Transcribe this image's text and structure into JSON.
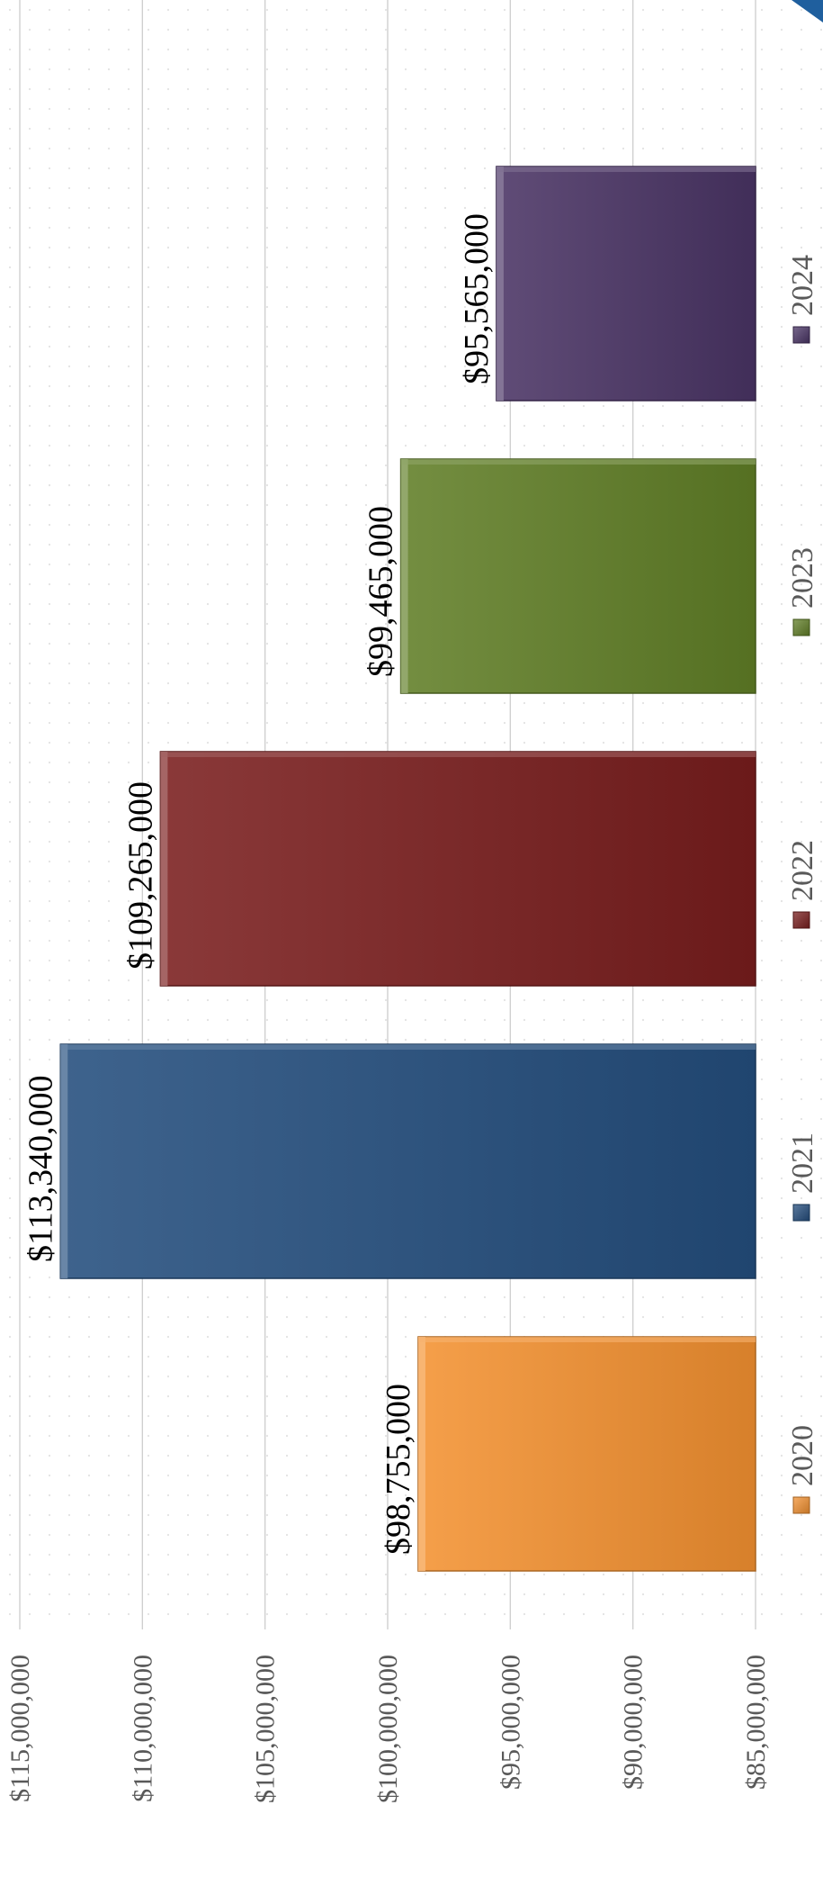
{
  "chart_data": {
    "type": "bar",
    "orientation": "rotated-90-cw",
    "title": "",
    "xlabel": "",
    "ylabel": "",
    "categories": [
      "2020",
      "2021",
      "2022",
      "2023",
      "2024"
    ],
    "values": [
      98755000,
      113340000,
      109265000,
      99465000,
      95565000
    ],
    "value_labels": [
      "$98,755,000",
      "$113,340,000",
      "$109,265,000",
      "$99,465,000",
      "$95,565,000"
    ],
    "colors": [
      "#F49231",
      "#244E7E",
      "#7A1E1E",
      "#617F27",
      "#4A3465"
    ],
    "ylim": [
      85000000,
      115000000
    ],
    "y_ticks": [
      85000000,
      90000000,
      95000000,
      100000000,
      105000000,
      110000000,
      115000000
    ],
    "y_tick_labels": [
      "$85,000,000",
      "$90,000,000",
      "$95,000,000",
      "$100,000,000",
      "$105,000,000",
      "$110,000,000",
      "$115,000,000"
    ],
    "grid": true,
    "legend": {
      "placement": "bottom",
      "entries": [
        "2020",
        "2021",
        "2022",
        "2023",
        "2024"
      ]
    }
  }
}
